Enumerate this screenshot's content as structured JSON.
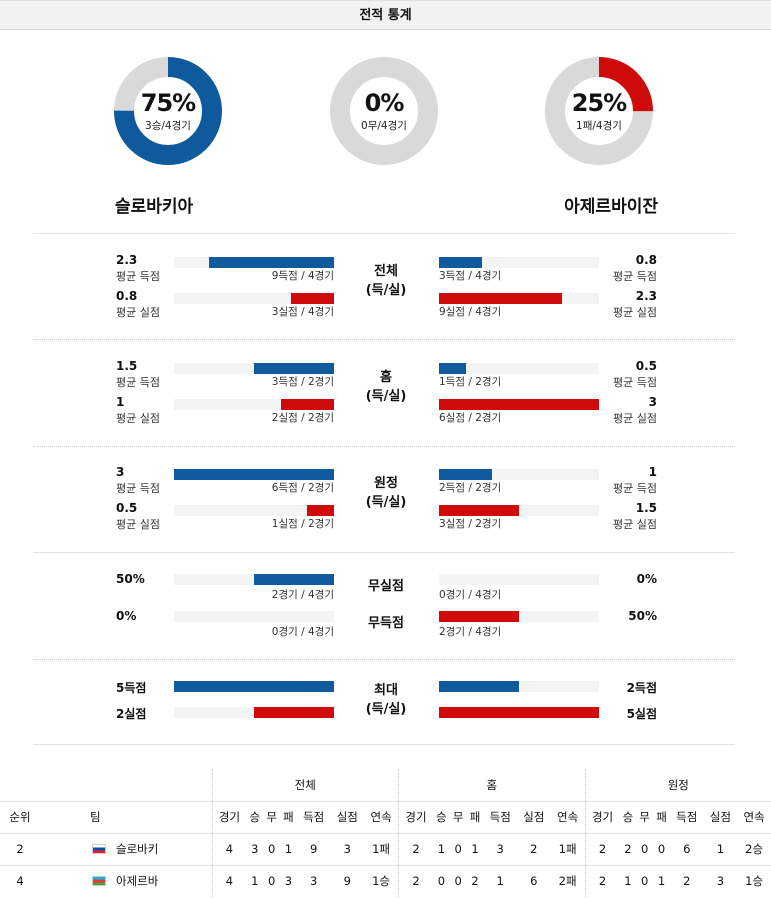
{
  "header": {
    "title": "전적 통계"
  },
  "donuts": {
    "left": {
      "pct": "75%",
      "sub": "3승/4경기",
      "fraction": 0.75,
      "color": "#0f5a9c"
    },
    "center": {
      "pct": "0%",
      "sub": "0무/4경기",
      "fraction": 0,
      "color": "#bbbbbb"
    },
    "right": {
      "pct": "25%",
      "sub": "1패/4경기",
      "fraction": 0.25,
      "color": "#cf0a0a"
    }
  },
  "teams": {
    "left": "슬로바키아",
    "right": "아제르바이잔"
  },
  "sections": {
    "overall": {
      "title1": "전체",
      "title2": "(득/실)",
      "l_scored_val": "2.3",
      "l_scored_lbl": "평균 득점",
      "l_scored_cap": "9득점 / 4경기",
      "l_scored_frac": 0.78,
      "l_conc_val": "0.8",
      "l_conc_lbl": "평균 실점",
      "l_conc_cap": "3실점 / 4경기",
      "l_conc_frac": 0.27,
      "r_scored_val": "0.8",
      "r_scored_lbl": "평균 득점",
      "r_scored_cap": "3득점 / 4경기",
      "r_scored_frac": 0.27,
      "r_conc_val": "2.3",
      "r_conc_lbl": "평균 실점",
      "r_conc_cap": "9실점 / 4경기",
      "r_conc_frac": 0.77
    },
    "home": {
      "title1": "홈",
      "title2": "(득/실)",
      "l_scored_val": "1.5",
      "l_scored_lbl": "평균 득점",
      "l_scored_cap": "3득점 / 2경기",
      "l_scored_frac": 0.5,
      "l_conc_val": "1",
      "l_conc_lbl": "평균 실점",
      "l_conc_cap": "2실점 / 2경기",
      "l_conc_frac": 0.33,
      "r_scored_val": "0.5",
      "r_scored_lbl": "평균 득점",
      "r_scored_cap": "1득점 / 2경기",
      "r_scored_frac": 0.17,
      "r_conc_val": "3",
      "r_conc_lbl": "평균 실점",
      "r_conc_cap": "6실점 / 2경기",
      "r_conc_frac": 1.0
    },
    "away": {
      "title1": "원정",
      "title2": "(득/실)",
      "l_scored_val": "3",
      "l_scored_lbl": "평균 득점",
      "l_scored_cap": "6득점 / 2경기",
      "l_scored_frac": 1.0,
      "l_conc_val": "0.5",
      "l_conc_lbl": "평균 실점",
      "l_conc_cap": "1실점 / 2경기",
      "l_conc_frac": 0.17,
      "r_scored_val": "1",
      "r_scored_lbl": "평균 득점",
      "r_scored_cap": "2득점 / 2경기",
      "r_scored_frac": 0.33,
      "r_conc_val": "1.5",
      "r_conc_lbl": "평균 실점",
      "r_conc_cap": "3실점 / 2경기",
      "r_conc_frac": 0.5
    },
    "cleansheet": {
      "title_a": "무실점",
      "title_b": "무득점",
      "l_a_val": "50%",
      "l_a_cap": "2경기 / 4경기",
      "l_a_frac": 0.5,
      "l_b_val": "0%",
      "l_b_cap": "0경기 / 4경기",
      "l_b_frac": 0,
      "r_a_val": "0%",
      "r_a_cap": "0경기 / 4경기",
      "r_a_frac": 0,
      "r_b_val": "50%",
      "r_b_cap": "2경기 / 4경기",
      "r_b_frac": 0.5
    },
    "max": {
      "title1": "최대",
      "title2": "(득/실)",
      "l_scored_val": "5득점",
      "l_scored_frac": 1.0,
      "l_conc_val": "2실점",
      "l_conc_frac": 0.5,
      "r_scored_val": "2득점",
      "r_scored_frac": 0.5,
      "r_conc_val": "5실점",
      "r_conc_frac": 1.0
    }
  },
  "standings": {
    "group_headers": [
      "전체",
      "홈",
      "원정"
    ],
    "rank_label": "순위",
    "team_label": "팀",
    "cols": [
      "경기",
      "승",
      "무",
      "패",
      "득점",
      "실점",
      "연속"
    ],
    "rows": [
      {
        "rank": "2",
        "team": "슬로바키",
        "flag": "slovakia-flag",
        "overall": [
          "4",
          "3",
          "0",
          "1",
          "9",
          "3",
          "1패"
        ],
        "home": [
          "2",
          "1",
          "0",
          "1",
          "3",
          "2",
          "1패"
        ],
        "away": [
          "2",
          "2",
          "0",
          "0",
          "6",
          "1",
          "2승"
        ]
      },
      {
        "rank": "4",
        "team": "아제르바",
        "flag": "azerbaijan-flag",
        "overall": [
          "4",
          "1",
          "0",
          "3",
          "3",
          "9",
          "1승"
        ],
        "home": [
          "2",
          "0",
          "0",
          "2",
          "1",
          "6",
          "2패"
        ],
        "away": [
          "2",
          "1",
          "0",
          "1",
          "2",
          "3",
          "1승"
        ]
      }
    ]
  }
}
